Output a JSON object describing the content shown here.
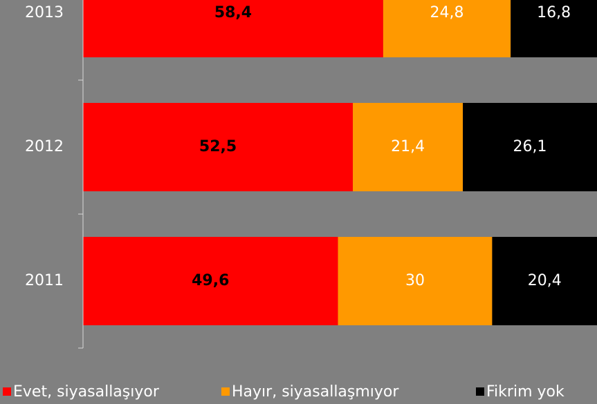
{
  "chart_data": {
    "type": "stacked_barh",
    "categories": [
      "2013",
      "2012",
      "2011"
    ],
    "series": [
      {
        "name": "Evet, siyasallaşıyor",
        "color": "#ff0000",
        "values": [
          58.4,
          52.5,
          49.6
        ],
        "value_labels": [
          "58,4",
          "52,5",
          "49,6"
        ]
      },
      {
        "name": "Hayır, siyasallaşmıyor",
        "color": "#ff9900",
        "values": [
          24.8,
          21.4,
          30
        ],
        "value_labels": [
          "24,8",
          "21,4",
          "30"
        ]
      },
      {
        "name": "Fikrim yok",
        "color": "#000000",
        "values": [
          16.8,
          26.1,
          20.4
        ],
        "value_labels": [
          "16,8",
          "26,1",
          "20,4"
        ]
      }
    ],
    "xlim": [
      0,
      100
    ],
    "legend": "bottom"
  }
}
